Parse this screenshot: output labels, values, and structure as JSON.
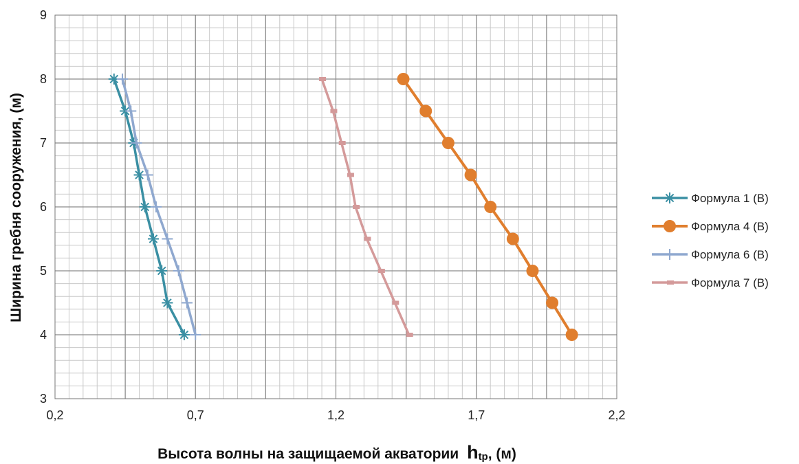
{
  "chart_data": {
    "type": "line",
    "title": "",
    "xlabel": "Высота волны на защищаемой акватории",
    "xlabel_symbol": "h",
    "xlabel_subscript": "tp",
    "xlabel_unit": ", (м)",
    "ylabel": "Ширина гребня сооружения, (м)",
    "xlim": [
      0.2,
      2.2
    ],
    "ylim": [
      3,
      9
    ],
    "x_ticks": [
      "0,2",
      "0,7",
      "1,2",
      "1,7",
      "2,2"
    ],
    "x_tick_values": [
      0.2,
      0.7,
      1.2,
      1.7,
      2.2
    ],
    "y_ticks": [
      "3",
      "4",
      "5",
      "6",
      "7",
      "8",
      "9"
    ],
    "y_tick_values": [
      3,
      4,
      5,
      6,
      7,
      8,
      9
    ],
    "grid": true,
    "legend_position": "right",
    "series": [
      {
        "name": "Формула 1 (В)",
        "color": "#3a8fa3",
        "marker": "asterisk",
        "points": [
          [
            0.41,
            8.0
          ],
          [
            0.45,
            7.5
          ],
          [
            0.48,
            7.0
          ],
          [
            0.5,
            6.5
          ],
          [
            0.52,
            6.0
          ],
          [
            0.55,
            5.5
          ],
          [
            0.58,
            5.0
          ],
          [
            0.6,
            4.5
          ],
          [
            0.66,
            4.0
          ]
        ]
      },
      {
        "name": "Формула 4 (В)",
        "color": "#e07e2e",
        "marker": "circle",
        "points": [
          [
            1.44,
            8.0
          ],
          [
            1.52,
            7.5
          ],
          [
            1.6,
            7.0
          ],
          [
            1.68,
            6.5
          ],
          [
            1.75,
            6.0
          ],
          [
            1.83,
            5.5
          ],
          [
            1.9,
            5.0
          ],
          [
            1.97,
            4.5
          ],
          [
            2.04,
            4.0
          ]
        ]
      },
      {
        "name": "Формула 6 (В)",
        "color": "#8fa8cf",
        "marker": "plus",
        "points": [
          [
            0.44,
            8.0
          ],
          [
            0.47,
            7.5
          ],
          [
            0.49,
            7.0
          ],
          [
            0.53,
            6.5
          ],
          [
            0.56,
            6.0
          ],
          [
            0.6,
            5.5
          ],
          [
            0.64,
            5.0
          ],
          [
            0.67,
            4.5
          ],
          [
            0.7,
            4.0
          ]
        ]
      },
      {
        "name": "Формула 7 (В)",
        "color": "#d49a9a",
        "marker": "dash",
        "points": [
          [
            1.15,
            8.0
          ],
          [
            1.19,
            7.5
          ],
          [
            1.22,
            7.0
          ],
          [
            1.25,
            6.5
          ],
          [
            1.27,
            6.0
          ],
          [
            1.31,
            5.5
          ],
          [
            1.36,
            5.0
          ],
          [
            1.41,
            4.5
          ],
          [
            1.46,
            4.0
          ]
        ]
      }
    ]
  }
}
